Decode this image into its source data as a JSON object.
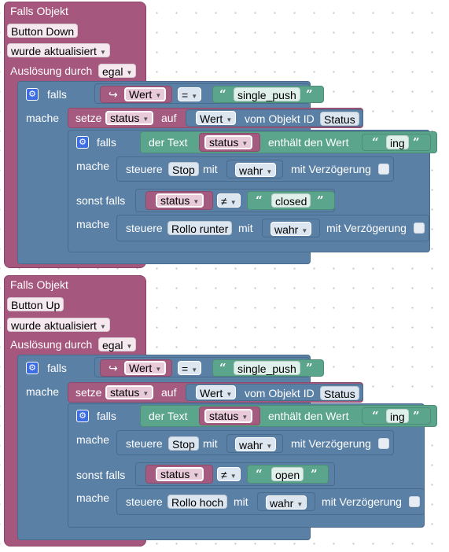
{
  "blocks": [
    {
      "event_label": "Falls Objekt",
      "object_id": "Button Down",
      "trigger_mode": "wurde aktualisiert",
      "trigger_label": "Auslösung durch",
      "trigger_source": "egal",
      "if_label": "falls",
      "do_label": "mache",
      "cond_var": "Wert",
      "cond_op": "=",
      "cond_value": "single_push",
      "set_label": "setze",
      "set_var": "status",
      "set_to": "auf",
      "set_prop": "Wert",
      "set_from": "vom Objekt ID",
      "set_obj": "Status",
      "inner_if": "falls",
      "text_label": "der Text",
      "text_var": "status",
      "contains_label": "enthält den Wert",
      "contains_value": "ing",
      "inner_do": "mache",
      "ctrl1_label": "steuere",
      "ctrl1_obj": "Stop",
      "ctrl1_with": "mit",
      "ctrl1_val": "wahr",
      "ctrl1_delay": "mit Verzögerung",
      "elseif_label": "sonst falls",
      "elseif_var": "status",
      "elseif_op": "≠",
      "elseif_value": "closed",
      "else_do": "mache",
      "ctrl2_label": "steuere",
      "ctrl2_obj": "Rollo runter",
      "ctrl2_with": "mit",
      "ctrl2_val": "wahr",
      "ctrl2_delay": "mit Verzögerung"
    },
    {
      "event_label": "Falls Objekt",
      "object_id": "Button Up",
      "trigger_mode": "wurde aktualisiert",
      "trigger_label": "Auslösung durch",
      "trigger_source": "egal",
      "if_label": "falls",
      "do_label": "mache",
      "cond_var": "Wert",
      "cond_op": "=",
      "cond_value": "single_push",
      "set_label": "setze",
      "set_var": "status",
      "set_to": "auf",
      "set_prop": "Wert",
      "set_from": "vom Objekt ID",
      "set_obj": "Status",
      "inner_if": "falls",
      "text_label": "der Text",
      "text_var": "status",
      "contains_label": "enthält den Wert",
      "contains_value": "ing",
      "inner_do": "mache",
      "ctrl1_label": "steuere",
      "ctrl1_obj": "Stop",
      "ctrl1_with": "mit",
      "ctrl1_val": "wahr",
      "ctrl1_delay": "mit Verzögerung",
      "elseif_label": "sonst falls",
      "elseif_var": "status",
      "elseif_op": "≠",
      "elseif_value": "open",
      "else_do": "mache",
      "ctrl2_label": "steuere",
      "ctrl2_obj": "Rollo hoch",
      "ctrl2_with": "mit",
      "ctrl2_val": "wahr",
      "ctrl2_delay": "mit Verzögerung"
    }
  ],
  "icons": {
    "gear": "gear-icon",
    "arrow": "arrow-icon",
    "quote": "quote-icon",
    "caret": "caret-down-icon",
    "checkbox": "checkbox"
  },
  "colors": {
    "event": "#a5577d",
    "logic": "#5b80a5",
    "text": "#5ba58c",
    "variable": "#a55b80"
  }
}
